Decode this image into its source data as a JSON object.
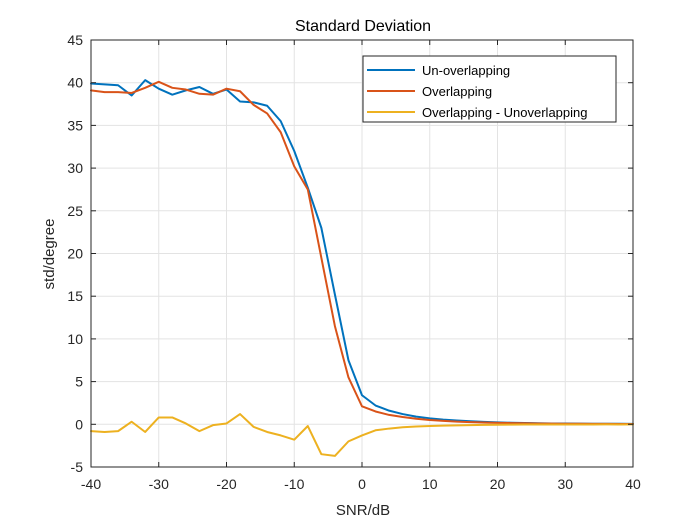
{
  "chart_data": {
    "type": "line",
    "title": "Standard Deviation",
    "xlabel": "SNR/dB",
    "ylabel": "std/degree",
    "xlim": [
      -40,
      40
    ],
    "ylim": [
      -5,
      45
    ],
    "xticks": [
      "-40",
      "-30",
      "-20",
      "-10",
      "0",
      "10",
      "20",
      "30",
      "40"
    ],
    "yticks": [
      "-5",
      "0",
      "5",
      "10",
      "15",
      "20",
      "25",
      "30",
      "35",
      "40",
      "45"
    ],
    "grid": true,
    "legend_position": "top-right",
    "x": [
      -40,
      -38,
      -36,
      -34,
      -32,
      -30,
      -28,
      -26,
      -24,
      -22,
      -20,
      -18,
      -16,
      -14,
      -12,
      -10,
      -8,
      -6,
      -4,
      -2,
      0,
      2,
      4,
      6,
      8,
      10,
      12,
      14,
      16,
      18,
      20,
      22,
      24,
      26,
      28,
      30,
      32,
      34,
      36,
      38,
      40
    ],
    "series": [
      {
        "name": "Un-overlapping",
        "color": "#0072BD",
        "values": [
          39.9,
          39.8,
          39.7,
          38.5,
          40.3,
          39.3,
          38.6,
          39.1,
          39.5,
          38.7,
          39.2,
          37.8,
          37.7,
          37.3,
          35.5,
          32.0,
          27.7,
          23.0,
          15.2,
          7.5,
          3.4,
          2.2,
          1.6,
          1.2,
          0.9,
          0.7,
          0.55,
          0.45,
          0.35,
          0.28,
          0.22,
          0.18,
          0.15,
          0.12,
          0.1,
          0.09,
          0.08,
          0.07,
          0.06,
          0.06,
          0.05
        ]
      },
      {
        "name": "Overlapping",
        "color": "#D95319",
        "values": [
          39.1,
          38.9,
          38.9,
          38.8,
          39.4,
          40.1,
          39.4,
          39.2,
          38.7,
          38.6,
          39.3,
          39.0,
          37.4,
          36.4,
          34.2,
          30.2,
          27.5,
          19.5,
          11.5,
          5.5,
          2.1,
          1.5,
          1.1,
          0.85,
          0.65,
          0.5,
          0.4,
          0.32,
          0.26,
          0.21,
          0.17,
          0.14,
          0.12,
          0.1,
          0.08,
          0.07,
          0.06,
          0.05,
          0.05,
          0.04,
          0.04
        ]
      },
      {
        "name": "Overlapping - Unoverlapping",
        "color": "#EDB120",
        "values": [
          -0.8,
          -0.9,
          -0.8,
          0.3,
          -0.9,
          0.8,
          0.8,
          0.1,
          -0.8,
          -0.1,
          0.1,
          1.2,
          -0.3,
          -0.9,
          -1.3,
          -1.8,
          -0.2,
          -3.5,
          -3.7,
          -2.0,
          -1.3,
          -0.7,
          -0.5,
          -0.35,
          -0.25,
          -0.2,
          -0.15,
          -0.13,
          -0.09,
          -0.07,
          -0.05,
          -0.04,
          -0.03,
          -0.02,
          -0.02,
          -0.02,
          -0.02,
          -0.02,
          -0.01,
          -0.02,
          -0.01
        ]
      }
    ]
  }
}
